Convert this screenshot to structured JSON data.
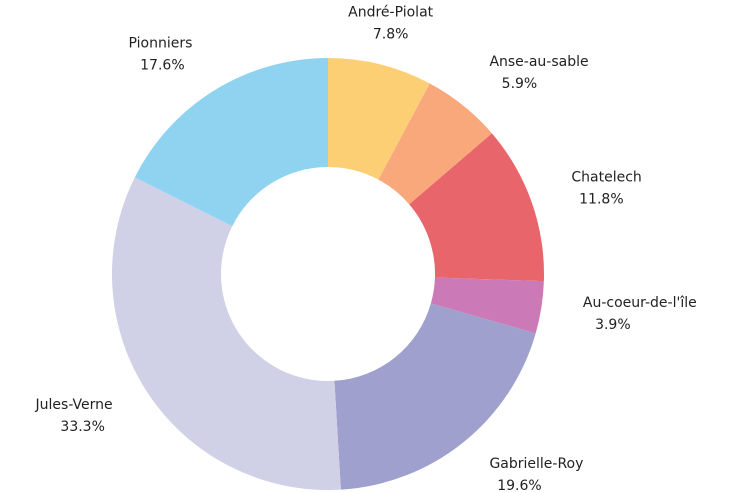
{
  "chart_data": {
    "type": "donut",
    "categories": [
      "André-Piolat",
      "Anse-au-sable",
      "Chatelech",
      "Au-coeur-de-l'île",
      "Gabrielle-Roy",
      "Jules-Verne",
      "Pionniers"
    ],
    "values": [
      7.8,
      5.9,
      11.8,
      3.9,
      19.6,
      33.3,
      17.6
    ],
    "value_labels": [
      "7.8%",
      "5.9%",
      "11.8%",
      "3.9%",
      "19.6%",
      "33.3%",
      "17.6%"
    ],
    "colors": [
      "#fccf75",
      "#f9a87c",
      "#e8666b",
      "#cc79b8",
      "#9fa0cd",
      "#d0d0e6",
      "#8fd3f0"
    ]
  }
}
